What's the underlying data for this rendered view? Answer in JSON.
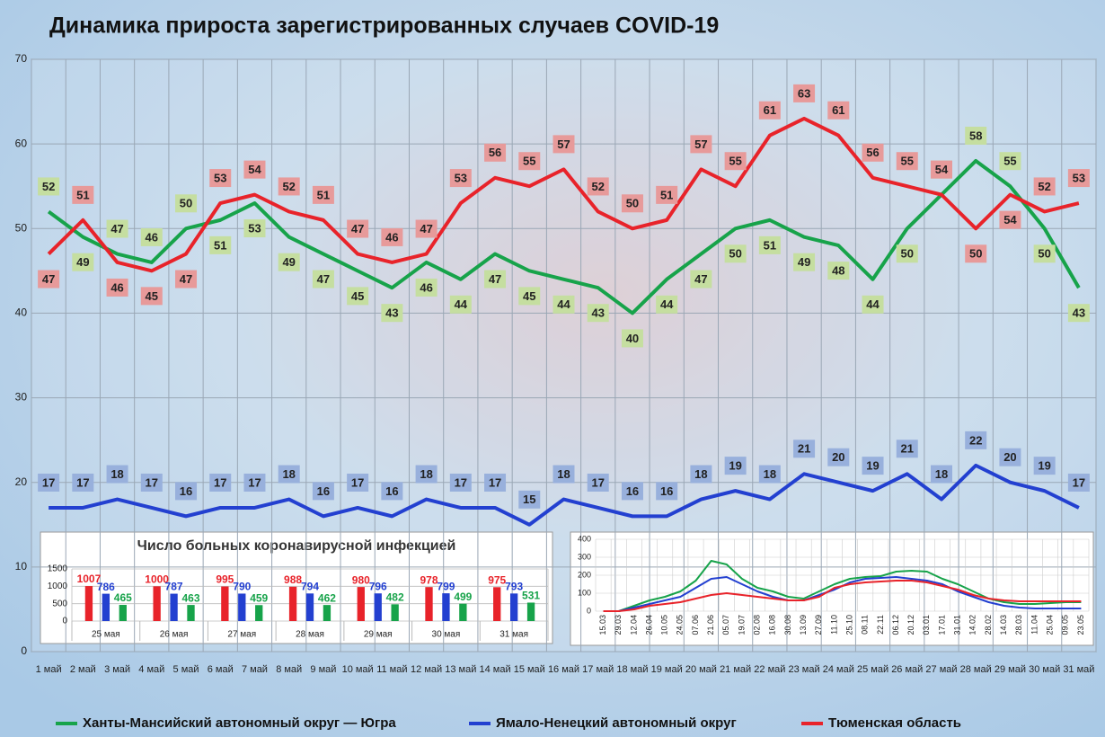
{
  "chart_data": [
    {
      "type": "line",
      "title": "Динамика прироста зарегистрированных случаев COVID-19",
      "categories": [
        "1 май",
        "2 май",
        "3 май",
        "4 май",
        "5 май",
        "6 май",
        "7 май",
        "8 май",
        "9 май",
        "10 май",
        "11 май",
        "12 май",
        "13 май",
        "14 май",
        "15 май",
        "16 май",
        "17 май",
        "18 май",
        "19 май",
        "20 май",
        "21 май",
        "22 май",
        "23 май",
        "24 май",
        "25 май",
        "26 май",
        "27 май",
        "28 май",
        "29 май",
        "30 май",
        "31 май"
      ],
      "series": [
        {
          "name": "Ханты-Мансийский автономный округ — Югра",
          "color": "#17a34a",
          "values": [
            52,
            49,
            47,
            46,
            50,
            51,
            53,
            49,
            47,
            45,
            43,
            46,
            44,
            47,
            45,
            44,
            43,
            40,
            44,
            47,
            50,
            51,
            49,
            48,
            44,
            50,
            54,
            58,
            55,
            50,
            43
          ]
        },
        {
          "name": "Ямало-Ненецкий автономный округ",
          "color": "#2340d0",
          "values": [
            17,
            17,
            18,
            17,
            16,
            17,
            17,
            18,
            16,
            17,
            16,
            18,
            17,
            17,
            15,
            18,
            17,
            16,
            16,
            18,
            19,
            18,
            21,
            20,
            19,
            21,
            18,
            22,
            20,
            19,
            17
          ]
        },
        {
          "name": "Тюменская область",
          "color": "#e8232a",
          "values": [
            47,
            51,
            46,
            45,
            47,
            53,
            54,
            52,
            51,
            47,
            46,
            47,
            53,
            56,
            55,
            57,
            52,
            50,
            51,
            57,
            55,
            61,
            63,
            61,
            56,
            55,
            54,
            50,
            54,
            52,
            53
          ]
        }
      ],
      "ylim": [
        0,
        70
      ],
      "yticks": [
        0,
        10,
        20,
        30,
        40,
        50,
        60,
        70
      ],
      "grid": true,
      "data_labels": true,
      "legend": "bottom"
    },
    {
      "type": "bar",
      "title": "Число больных коронавирусной инфекцией",
      "categories": [
        "25 мая",
        "26 мая",
        "27 мая",
        "28 мая",
        "29 мая",
        "30 мая",
        "31 мая"
      ],
      "series": [
        {
          "color": "#e8232a",
          "values": [
            1007,
            1000,
            995,
            988,
            980,
            978,
            975
          ]
        },
        {
          "color": "#2340d0",
          "values": [
            786,
            787,
            790,
            794,
            796,
            799,
            793
          ]
        },
        {
          "color": "#17a34a",
          "values": [
            465,
            463,
            459,
            462,
            482,
            499,
            531
          ]
        }
      ],
      "ylim": [
        0,
        1500
      ],
      "yticks": [
        0,
        500,
        1000,
        1500
      ],
      "grid": true,
      "data_labels": true
    },
    {
      "type": "line",
      "categories": [
        "15.03",
        "29.03",
        "12.04",
        "26.04",
        "10.05",
        "24.05",
        "07.06",
        "21.06",
        "05.07",
        "19.07",
        "02.08",
        "16.08",
        "30.08",
        "13.09",
        "27.09",
        "11.10",
        "25.10",
        "08.11",
        "22.11",
        "06.12",
        "20.12",
        "03.01",
        "17.01",
        "31.01",
        "14.02",
        "28.02",
        "14.03",
        "28.03",
        "11.04",
        "25.04",
        "09.05",
        "23.05"
      ],
      "series": [
        {
          "color": "#17a34a",
          "values": [
            0,
            0,
            30,
            60,
            80,
            110,
            170,
            280,
            260,
            180,
            130,
            110,
            80,
            70,
            110,
            150,
            180,
            190,
            195,
            220,
            225,
            220,
            180,
            150,
            110,
            70,
            50,
            40,
            40,
            45,
            50,
            50
          ]
        },
        {
          "color": "#2340d0",
          "values": [
            0,
            0,
            20,
            40,
            60,
            80,
            130,
            180,
            190,
            150,
            110,
            80,
            60,
            60,
            90,
            120,
            160,
            180,
            185,
            190,
            180,
            170,
            150,
            110,
            80,
            50,
            30,
            20,
            15,
            15,
            15,
            15
          ]
        },
        {
          "color": "#e8232a",
          "values": [
            0,
            0,
            10,
            30,
            40,
            50,
            70,
            90,
            100,
            90,
            80,
            70,
            60,
            60,
            80,
            130,
            150,
            160,
            165,
            170,
            170,
            160,
            140,
            120,
            90,
            70,
            60,
            55,
            55,
            55,
            55,
            55
          ]
        }
      ],
      "ylim": [
        0,
        400
      ],
      "yticks": [
        0,
        100,
        200,
        300,
        400
      ],
      "grid": true,
      "rotate_x_labels": true
    }
  ]
}
